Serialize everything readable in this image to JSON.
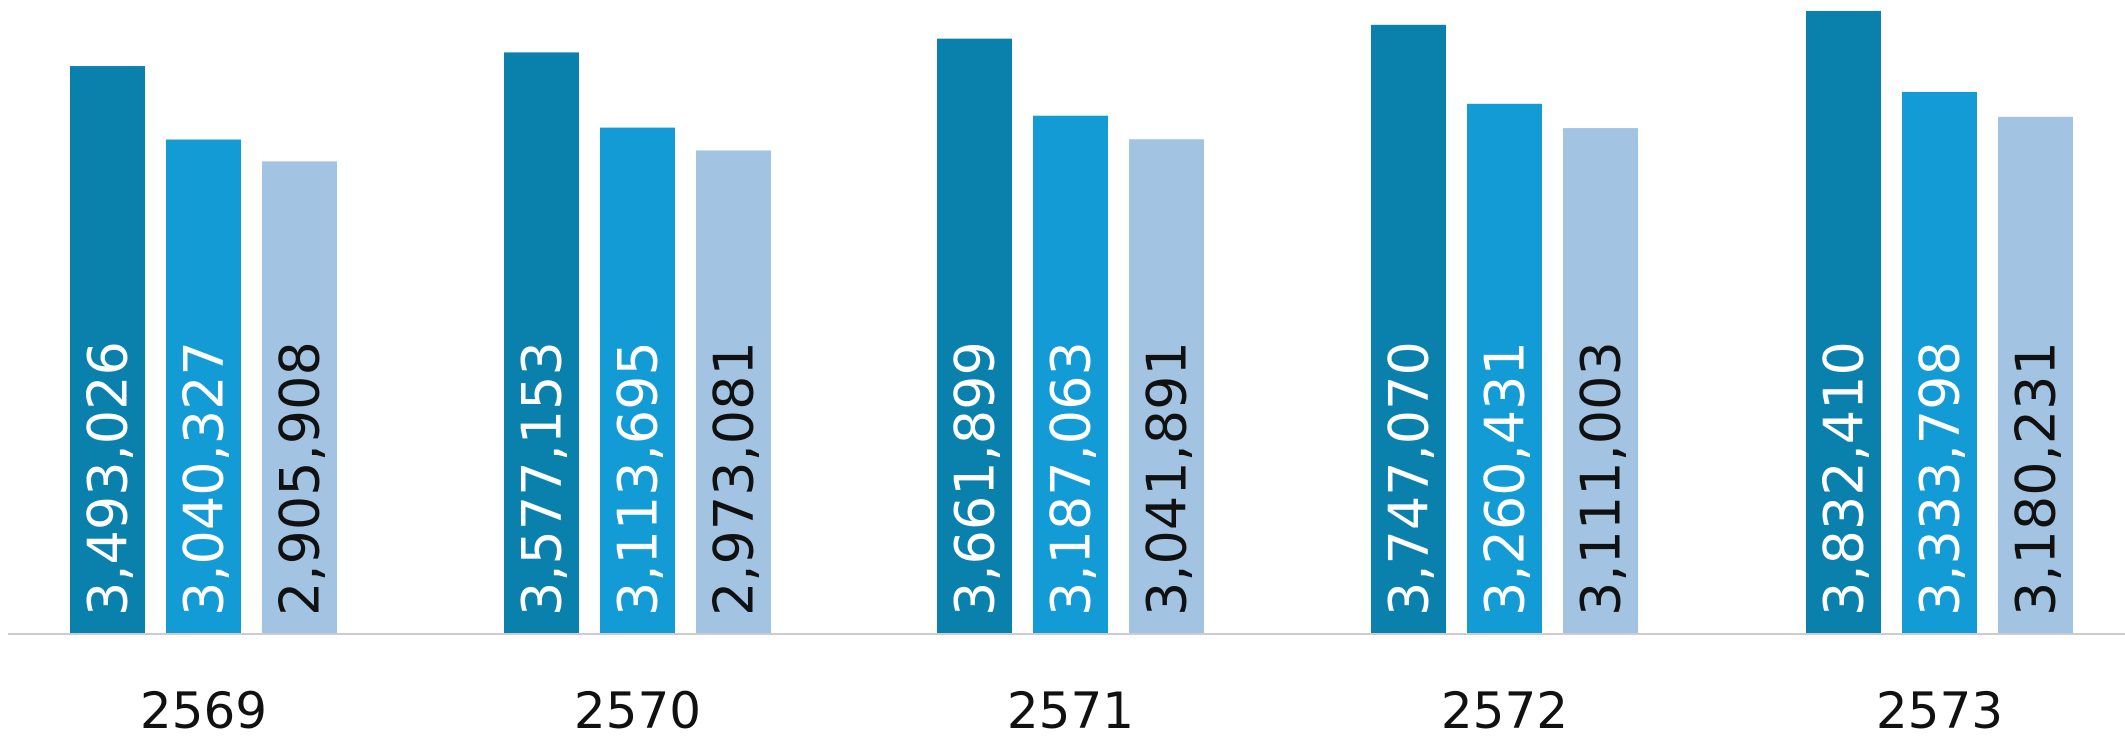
{
  "chart_data": {
    "type": "bar",
    "title": "",
    "xlabel": "",
    "ylabel": "",
    "categories": [
      "2569",
      "2570",
      "2571",
      "2572",
      "2573"
    ],
    "series": [
      {
        "values": [
          3493026,
          3577153,
          3661899,
          3747070,
          3832410
        ],
        "labels": [
          "3,493,026",
          "3,577,153",
          "3,661,899",
          "3,747,070",
          "3,832,410"
        ],
        "color": "#0a80ac",
        "label_color": "#ffffff"
      },
      {
        "values": [
          3040327,
          3113695,
          3187063,
          3260431,
          3333798
        ],
        "labels": [
          "3,040,327",
          "3,113,695",
          "3,187,063",
          "3,260,431",
          "3,333,798"
        ],
        "color": "#129bd4",
        "label_color": "#ffffff"
      },
      {
        "values": [
          2905908,
          2973081,
          3041891,
          3111003,
          3180231
        ],
        "labels": [
          "2,905,908",
          "2,973,081",
          "3,041,891",
          "3,111,003",
          "3,180,231"
        ],
        "color": "#a2c4e2",
        "label_color": "#111111"
      }
    ],
    "ylim": [
      0,
      3900000
    ],
    "grid": false,
    "legend": "none",
    "baseline_color": "#cccccc"
  }
}
